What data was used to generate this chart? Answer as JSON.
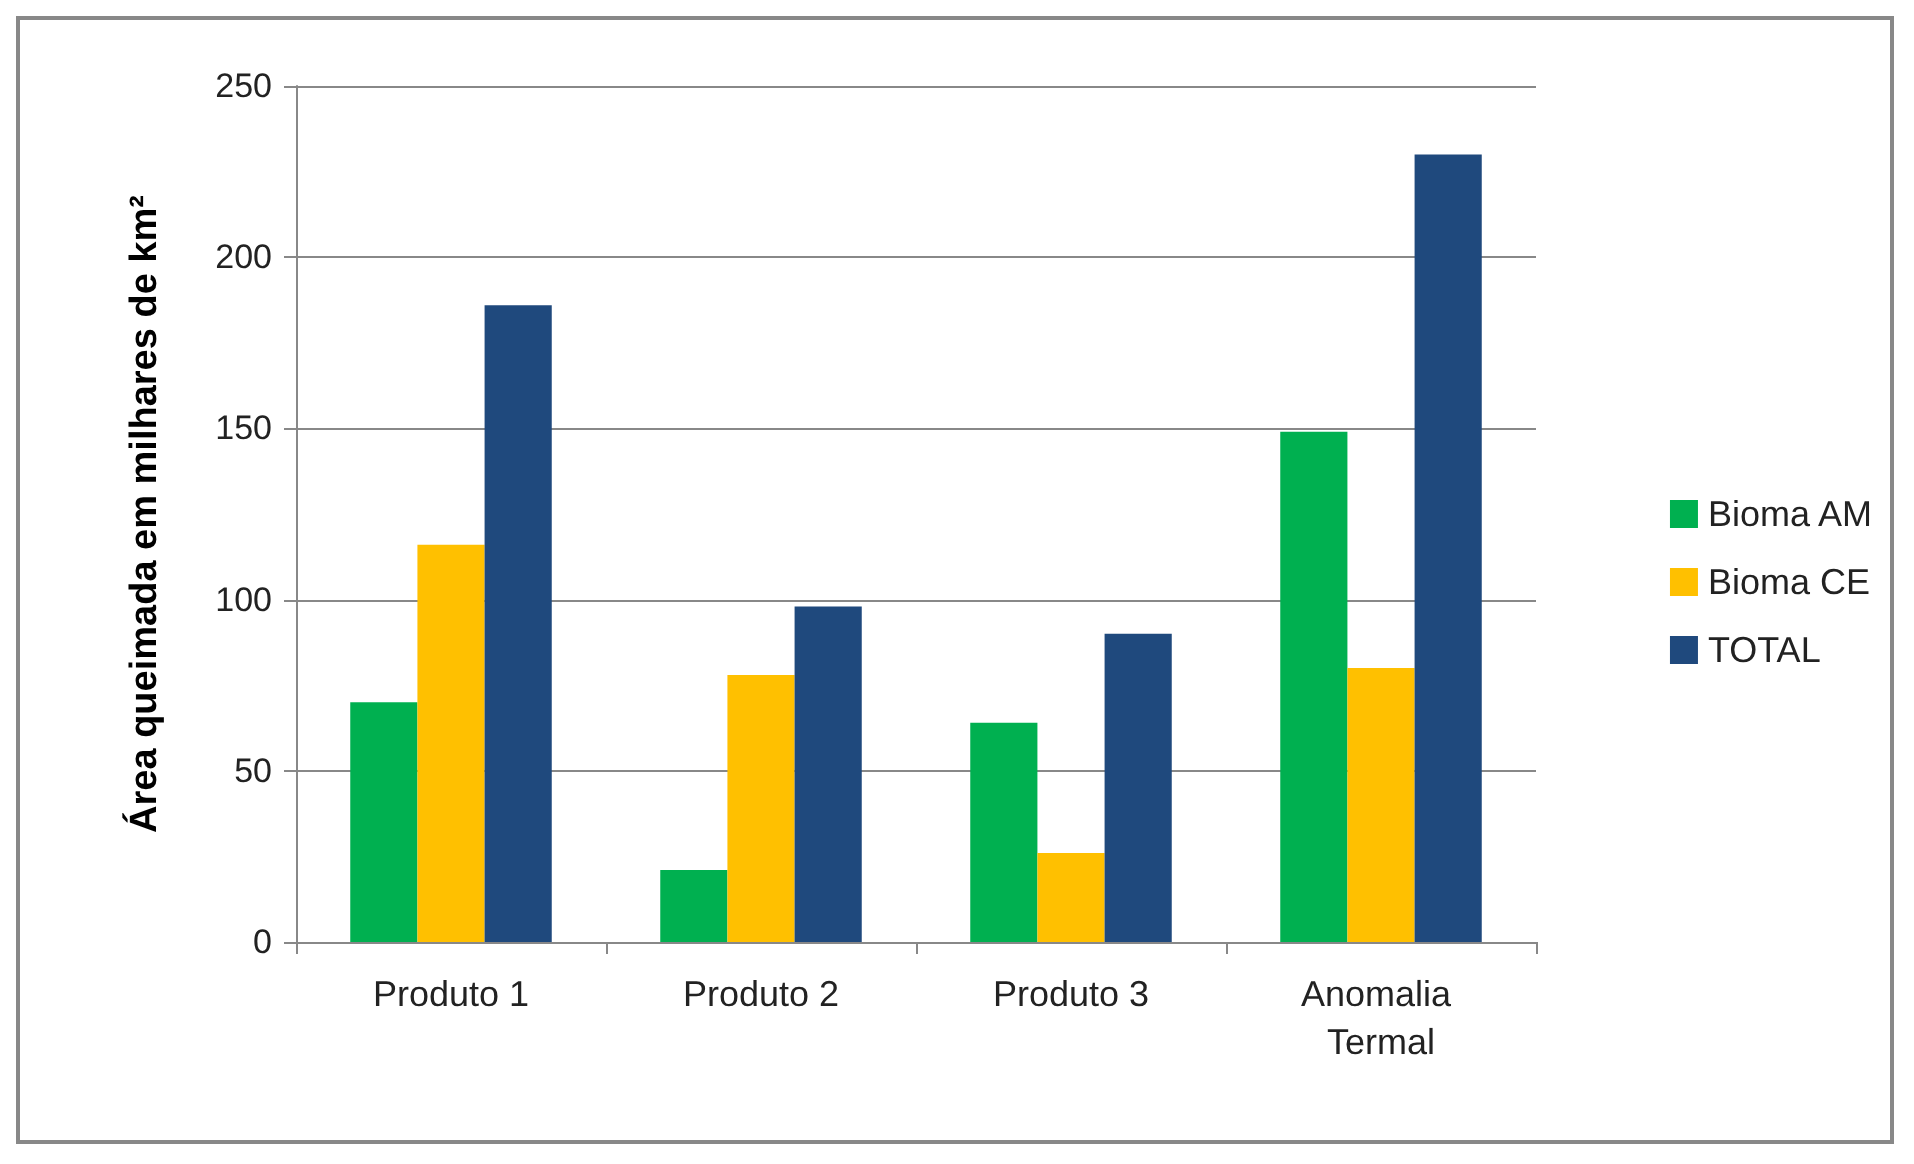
{
  "chart_data": {
    "type": "bar",
    "ylabel": "Área queimada em milhares de km²",
    "categories": [
      "Produto 1",
      "Produto 2",
      "Produto 3",
      "Anomalia Termal"
    ],
    "series": [
      {
        "name": "Bioma AM",
        "color": "#00b050",
        "values": [
          70,
          21,
          64,
          149
        ]
      },
      {
        "name": "Bioma CE",
        "color": "#ffc000",
        "values": [
          116,
          78,
          26,
          80
        ]
      },
      {
        "name": "TOTAL",
        "color": "#1f497d",
        "values": [
          186,
          98,
          90,
          230
        ]
      }
    ],
    "ylim": [
      0,
      250
    ],
    "yticks": [
      0,
      50,
      100,
      150,
      200,
      250
    ],
    "grid": "y",
    "legend": "right"
  }
}
